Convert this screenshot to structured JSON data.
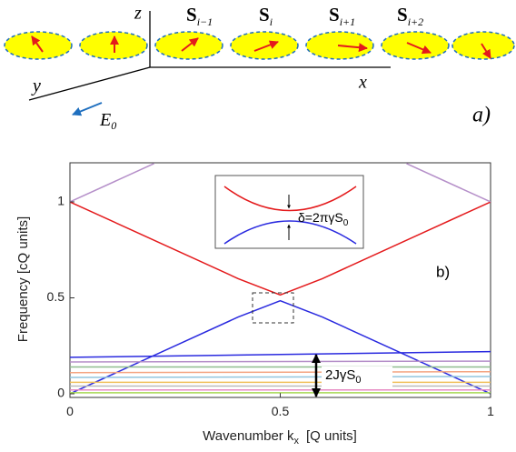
{
  "schematic": {
    "spins": [
      {
        "symbol": "S",
        "subscript": "i−1"
      },
      {
        "symbol": "S",
        "subscript": "i"
      },
      {
        "symbol": "S",
        "subscript": "i+1"
      },
      {
        "symbol": "S",
        "subscript": "i+2"
      }
    ],
    "axis_z": "z",
    "axis_y": "y",
    "axis_x": "x",
    "field": {
      "symbol": "E",
      "subscript": "0"
    },
    "panel_label": "a)"
  },
  "chart_data": {
    "type": "line",
    "xlabel": {
      "text": "Wavenumber k",
      "subscript": "x",
      "units": "[Q units]"
    },
    "ylabel": "Frequency  [cQ units]",
    "xlim": [
      0,
      1
    ],
    "ylim": [
      -0.02,
      1.2
    ],
    "xticks": [
      0,
      0.5,
      1
    ],
    "yticks": [
      0,
      0.5,
      1
    ],
    "series": [
      {
        "color": "#e41a1c",
        "x": [
          0,
          0.4,
          0.5,
          0.6,
          1
        ],
        "values": [
          1,
          0.6,
          0.515,
          0.6,
          1
        ]
      },
      {
        "color": "#2a2adf",
        "x": [
          0,
          0.4,
          0.5,
          0.6,
          1
        ],
        "values": [
          0,
          0.4,
          0.485,
          0.4,
          0
        ]
      },
      {
        "color": "#b58fc9",
        "x": [
          0,
          0.2
        ],
        "values": [
          1,
          1.2
        ]
      },
      {
        "color": "#b58fc9",
        "x": [
          0.8,
          1
        ],
        "values": [
          1.2,
          1
        ]
      },
      {
        "color": "#2a2adf",
        "x": [
          0,
          1
        ],
        "values": [
          0.19,
          0.22
        ]
      },
      {
        "color": "#b58fc9",
        "x": [
          0,
          1
        ],
        "values": [
          0.166,
          0.17
        ]
      },
      {
        "color": "#8fbc8f",
        "x": [
          0,
          1
        ],
        "values": [
          0.14,
          0.14
        ]
      },
      {
        "color": "#f4a582",
        "x": [
          0,
          1
        ],
        "values": [
          0.11,
          0.115
        ]
      },
      {
        "color": "#92c5de",
        "x": [
          0,
          1
        ],
        "values": [
          0.085,
          0.09
        ]
      },
      {
        "color": "#f0c05a",
        "x": [
          0,
          1
        ],
        "values": [
          0.06,
          0.06
        ]
      },
      {
        "color": "#bbbbbb",
        "x": [
          0,
          1
        ],
        "values": [
          0.04,
          0.04
        ]
      },
      {
        "color": "#e78ac3",
        "x": [
          0,
          1
        ],
        "values": [
          0.02,
          0.02
        ]
      },
      {
        "color": "#a6d854",
        "x": [
          0,
          1
        ],
        "values": [
          0.005,
          0.005
        ]
      }
    ],
    "annotations": {
      "panel_label": "b)",
      "gap": {
        "text": "2JγS",
        "subscript": "0"
      },
      "inset": {
        "text": "δ=2πγS",
        "subscript": "0"
      }
    }
  }
}
